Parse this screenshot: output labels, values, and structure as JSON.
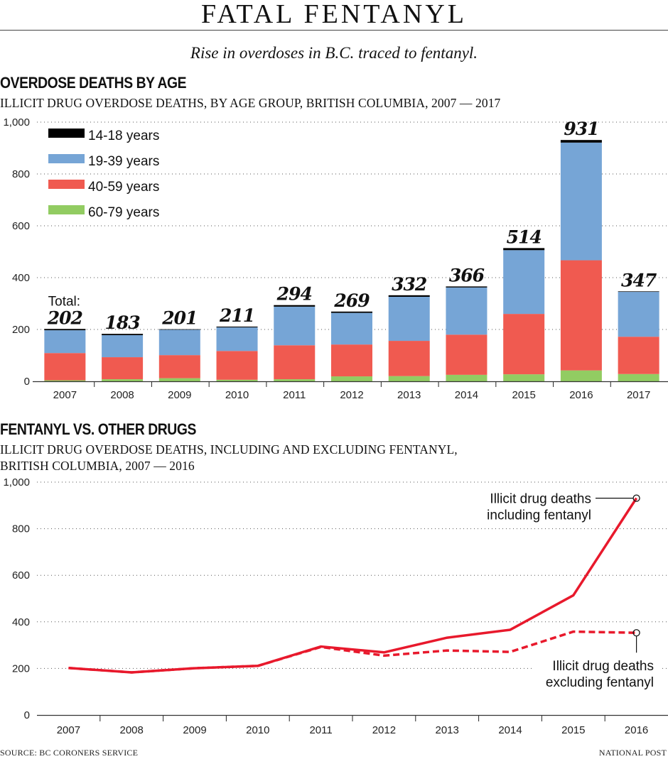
{
  "header": {
    "title": "FATAL FENTANYL",
    "subtitle": "Rise in overdoses in B.C. traced to fentanyl."
  },
  "colors": {
    "age_14_18": "#000000",
    "age_19_39": "#76a5d6",
    "age_40_59": "#f05a50",
    "age_60_79": "#92cc62",
    "line": "#e8192c"
  },
  "chart_data": [
    {
      "type": "bar",
      "stacked": true,
      "title": "OVERDOSE DEATHS BY AGE",
      "subtitle": "ILLICIT DRUG OVERDOSE DEATHS, BY AGE GROUP, BRITISH COLUMBIA, 2007 — 2017",
      "xlabel": "",
      "ylabel": "",
      "ylim": [
        0,
        1000
      ],
      "yticks": [
        0,
        200,
        400,
        600,
        800,
        1000
      ],
      "ytick_labels": [
        "0",
        "200",
        "400",
        "600",
        "800",
        "1,000"
      ],
      "grid": true,
      "legend_position": "top-left",
      "categories": [
        "2007",
        "2008",
        "2009",
        "2010",
        "2011",
        "2012",
        "2013",
        "2014",
        "2015",
        "2016",
        "2017"
      ],
      "series": [
        {
          "name": "60-79 years",
          "color_key": "age_60_79",
          "values": [
            4,
            8,
            12,
            6,
            8,
            19,
            20,
            25,
            27,
            42,
            28
          ]
        },
        {
          "name": "40-59 years",
          "color_key": "age_40_59",
          "values": [
            105,
            85,
            89,
            111,
            131,
            123,
            136,
            155,
            233,
            425,
            144
          ]
        },
        {
          "name": "19-39 years",
          "color_key": "age_19_39",
          "values": [
            88,
            85,
            98,
            91,
            149,
            122,
            170,
            182,
            246,
            454,
            173
          ]
        },
        {
          "name": "14-18 years",
          "color_key": "age_14_18",
          "values": [
            5,
            5,
            2,
            3,
            6,
            5,
            6,
            4,
            8,
            10,
            2
          ]
        }
      ],
      "legend_order": [
        "14-18 years",
        "19-39 years",
        "40-59 years",
        "60-79 years"
      ],
      "totals": [
        202,
        183,
        201,
        211,
        294,
        269,
        332,
        366,
        514,
        931,
        347
      ],
      "total_prefix": "Total:"
    },
    {
      "type": "line",
      "title": "FENTANYL VS. OTHER DRUGS",
      "subtitle_lines": [
        "ILLICIT DRUG OVERDOSE DEATHS, INCLUDING AND EXCLUDING FENTANYL,",
        "BRITISH COLUMBIA, 2007 — 2016"
      ],
      "xlabel": "",
      "ylabel": "",
      "ylim": [
        0,
        1000
      ],
      "yticks": [
        0,
        200,
        400,
        600,
        800,
        1000
      ],
      "ytick_labels": [
        "0",
        "200",
        "400",
        "600",
        "800",
        "1,000"
      ],
      "grid": true,
      "categories": [
        "2007",
        "2008",
        "2009",
        "2010",
        "2011",
        "2012",
        "2013",
        "2014",
        "2015",
        "2016"
      ],
      "series": [
        {
          "name": "Illicit drug deaths including fentanyl",
          "style": "solid",
          "values": [
            202,
            183,
            201,
            211,
            294,
            269,
            332,
            366,
            514,
            931
          ]
        },
        {
          "name": "Illicit drug deaths excluding fentanyl",
          "style": "dashed",
          "values": [
            202,
            183,
            201,
            211,
            292,
            255,
            277,
            271,
            358,
            353
          ]
        }
      ],
      "annotations": [
        {
          "series": 0,
          "lines": [
            "Illicit drug deaths",
            "including fentanyl"
          ]
        },
        {
          "series": 1,
          "lines": [
            "Illicit drug deaths",
            "excluding fentanyl"
          ]
        }
      ]
    }
  ],
  "footer": {
    "source": "SOURCE: BC CORONERS SERVICE",
    "credit": "NATIONAL POST"
  }
}
